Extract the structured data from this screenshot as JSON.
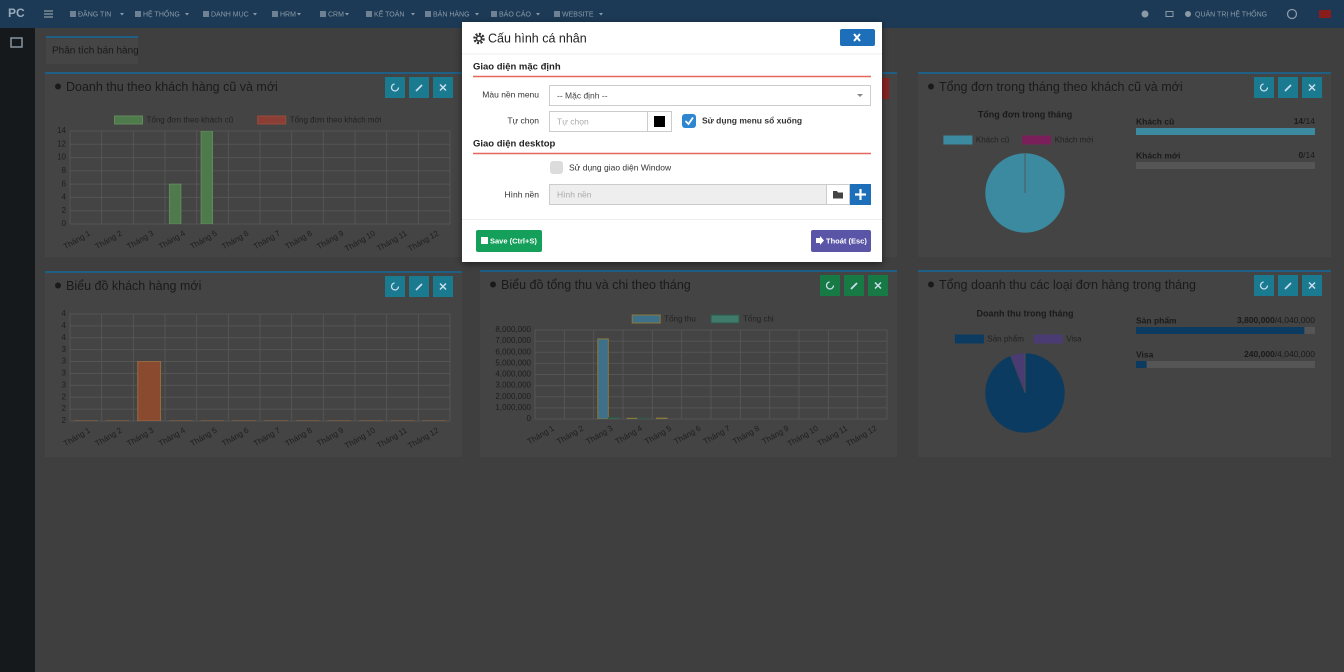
{
  "nav": {
    "logo": "PC",
    "items": [
      "ĐĂNG TIN",
      "HỆ THỐNG",
      "DANH MỤC",
      "HRM",
      "CRM",
      "KẾ TOÁN",
      "BÁN HÀNG",
      "BÁO CÁO",
      "WEBSITE"
    ],
    "user": "QUẢN TRỊ HỆ THỐNG"
  },
  "tab": "Phân tích bán hàng",
  "panels": [
    {
      "title": "Doanh thu theo khách hàng cũ và mới",
      "chart": {
        "type": "bar",
        "categories": [
          "Tháng 1",
          "Tháng 2",
          "Tháng 3",
          "Tháng 4",
          "Tháng 5",
          "Tháng 6",
          "Tháng 7",
          "Tháng 8",
          "Tháng 9",
          "Tháng 10",
          "Tháng 11",
          "Tháng 12"
        ],
        "series": [
          {
            "name": "Tổng đơn theo khách cũ",
            "color": "#4f7a4c",
            "border": "#5f8a5a",
            "values": [
              0,
              0,
              0,
              6,
              14,
              0,
              0,
              0,
              0,
              0,
              0,
              0
            ]
          },
          {
            "name": "Tổng đơn theo khách mới",
            "color": "#8a3e34",
            "border": "#9a4a3e",
            "values": [
              0,
              0,
              0,
              0,
              0,
              0,
              0,
              0,
              0,
              0,
              0,
              0
            ]
          }
        ],
        "ylim": [
          0,
          14
        ],
        "yticks": [
          0,
          2,
          4,
          6,
          8,
          10,
          12,
          14
        ],
        "grid": true
      }
    },
    {
      "title": "Tổng đơn trong tháng theo khách cũ và mới",
      "chart": {
        "type": "pie",
        "title": "Tổng đơn trong tháng",
        "labels": [
          "Khách cũ",
          "Khách mới"
        ],
        "values": [
          14,
          0
        ],
        "colors": [
          "#3b8aa0",
          "#7a1f5a"
        ]
      },
      "progress": [
        {
          "label": "Khách cũ",
          "value": 14,
          "total": {
            "value": 14,
            "label": "/14"
          }
        },
        {
          "label": "Khách mới",
          "value": 0,
          "total": {
            "value": 14,
            "label": "/14"
          }
        }
      ],
      "progress_color": "#3b8aa0"
    },
    {
      "title": "Biểu đồ khách hàng mới",
      "chart": {
        "type": "bar",
        "categories": [
          "Tháng 1",
          "Tháng 2",
          "Tháng 3",
          "Tháng 4",
          "Tháng 5",
          "Tháng 6",
          "Tháng 7",
          "Tháng 8",
          "Tháng 9",
          "Tháng 10",
          "Tháng 11",
          "Tháng 12"
        ],
        "series": [
          {
            "color": "#8a4a30",
            "border": "#9a6a40",
            "values": [
              0,
              0,
              3,
              0,
              0,
              0,
              0,
              0,
              0,
              0,
              0,
              0
            ]
          }
        ],
        "ylim": [
          1.75,
          4
        ],
        "yticks": [
          {
            "value": 1.75,
            "label": "2"
          },
          {
            "value": 2,
            "label": "2"
          },
          {
            "value": 2.25,
            "label": "2"
          },
          {
            "value": 2.5,
            "label": "3"
          },
          {
            "value": 2.75,
            "label": "3"
          },
          {
            "value": 3,
            "label": "3"
          },
          {
            "value": 3.25,
            "label": "3"
          },
          {
            "value": 3.5,
            "label": "4"
          },
          {
            "value": 3.75,
            "label": "4"
          },
          {
            "value": 4,
            "label": "4"
          }
        ],
        "grid": true
      }
    },
    {
      "title": "Biểu đồ tổng thu và chi theo tháng",
      "chart": {
        "type": "bar",
        "categories": [
          "Tháng 1",
          "Tháng 2",
          "Tháng 3",
          "Tháng 4",
          "Tháng 5",
          "Tháng 6",
          "Tháng 7",
          "Tháng 8",
          "Tháng 9",
          "Tháng 10",
          "Tháng 11",
          "Tháng 12"
        ],
        "series": [
          {
            "name": "Tổng thu",
            "color": "#3f7089",
            "border": "#8a7a3a",
            "values": [
              0,
              0,
              7200000,
              60000,
              80000,
              0,
              0,
              0,
              0,
              0,
              0,
              0
            ]
          },
          {
            "name": "Tổng chi",
            "color": "#3f7a6a",
            "border": "#2f5a4a",
            "values": [
              0,
              0,
              120000,
              70000,
              0,
              0,
              0,
              0,
              0,
              0,
              0,
              0
            ]
          }
        ],
        "ylim": [
          0,
          8000000
        ],
        "yticks": [
          0,
          {
            "value": 1000000,
            "label": "1,000,000"
          },
          {
            "value": 2000000,
            "label": "2,000,000"
          },
          {
            "value": 3000000,
            "label": "3,000,000"
          },
          {
            "value": 4000000,
            "label": "4,000,000"
          },
          {
            "value": 5000000,
            "label": "5,000,000"
          },
          {
            "value": 6000000,
            "label": "6,000,000"
          },
          {
            "value": 7000000,
            "label": "7,000,000"
          },
          {
            "value": 8000000,
            "label": "8,000,000"
          }
        ],
        "grid": true
      }
    },
    {
      "title": "Tổng doanh thu các loại đơn hàng trong tháng",
      "chart": {
        "type": "pie",
        "title": "Doanh thu trong tháng",
        "labels": [
          "Sản phẩm",
          "Visa"
        ],
        "values": [
          3800000,
          240000
        ],
        "colors": [
          "#0b3b61",
          "#4b3b73"
        ]
      },
      "progress": [
        {
          "label": "Sản phẩm",
          "value": 3800000,
          "value_label": "3,800,000",
          "total": {
            "value": 4040000,
            "label": "/4,040,000"
          }
        },
        {
          "label": "Visa",
          "value": 240000,
          "value_label": "240,000",
          "total": {
            "value": 4040000,
            "label": "/4,040,000"
          }
        }
      ],
      "progress_color": "#0b3b61"
    }
  ],
  "modal": {
    "title": "Cấu hình cá nhân",
    "section1": "Giao diện mặc định",
    "menu_color_label": "Màu nền menu",
    "menu_color_value": "-- Mặc định --",
    "custom_label": "Tự chọn",
    "custom_placeholder": "Tự chọn",
    "dropdown_menu": "Sử dụng menu sổ xuống",
    "section2": "Giao diện desktop",
    "window_mode": "Sử dụng giao diện Window",
    "wallpaper_label": "Hình nền",
    "wallpaper_placeholder": "Hình nền",
    "save": "Save (Ctrl+S)",
    "exit": "Thoát (Esc)"
  }
}
